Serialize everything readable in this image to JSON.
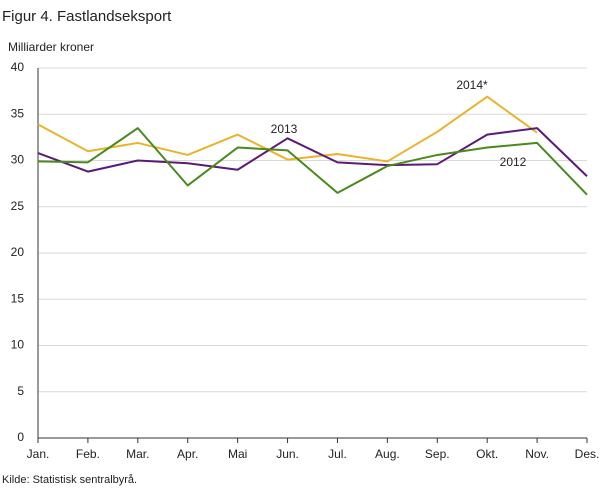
{
  "chart_data": {
    "type": "line",
    "title": "Figur 4. Fastlandseksport",
    "y_label": "Milliarder  kroner",
    "source": "Kilde: Statistisk sentralbyrå.",
    "categories": [
      "Jan.",
      "Feb.",
      "Mar.",
      "Apr.",
      "Mai",
      "Jun.",
      "Jul.",
      "Aug.",
      "Sep.",
      "Okt.",
      "Nov.",
      "Des."
    ],
    "series": [
      {
        "name": "2014*",
        "color": "#e8b42c",
        "values": [
          33.9,
          31.0,
          31.9,
          30.6,
          32.8,
          30.1,
          30.7,
          29.9,
          33.1,
          36.9,
          33.0,
          null
        ]
      },
      {
        "name": "2013",
        "color": "#5c1a76",
        "values": [
          30.8,
          28.8,
          30.0,
          29.7,
          29.0,
          32.4,
          29.8,
          29.5,
          29.6,
          32.8,
          33.5,
          28.3
        ]
      },
      {
        "name": "2012",
        "color": "#4a8a1c",
        "values": [
          29.9,
          29.8,
          33.5,
          27.3,
          31.4,
          31.1,
          26.5,
          29.4,
          30.6,
          31.4,
          31.9,
          26.3
        ]
      }
    ],
    "ylim": [
      0,
      40
    ],
    "yticks": [
      0,
      5,
      10,
      15,
      20,
      25,
      30,
      35,
      40
    ],
    "grid": true
  }
}
